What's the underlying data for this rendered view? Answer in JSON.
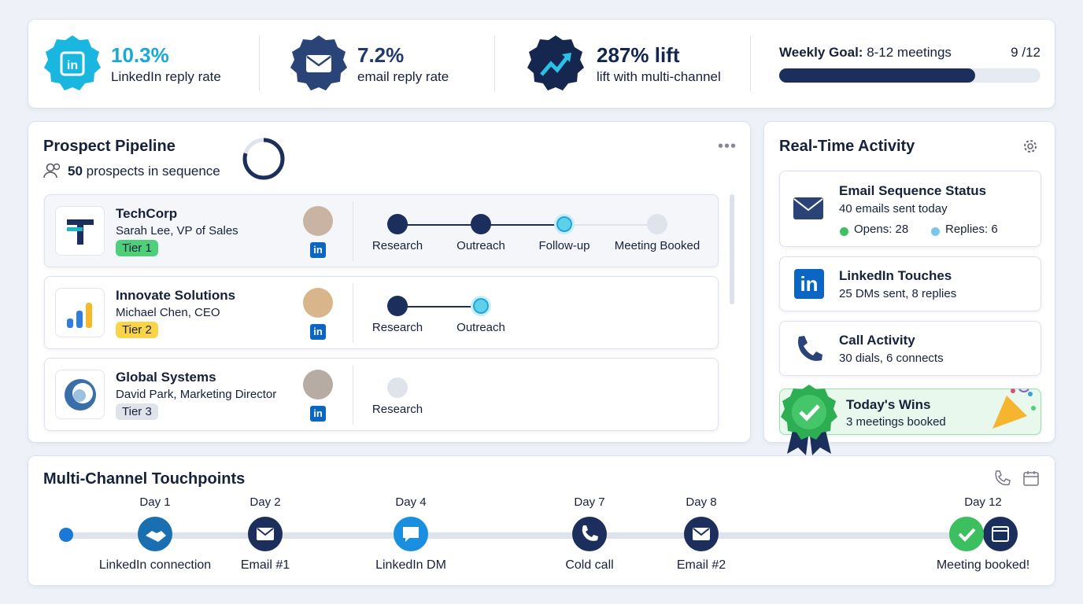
{
  "stats": [
    {
      "value": "10.3%",
      "label": "LinkedIn reply rate"
    },
    {
      "value": "7.2%",
      "label": "email reply rate"
    },
    {
      "value": "287% lift",
      "label": "lift with multi-channel"
    }
  ],
  "goal": {
    "label": "Weekly Goal:",
    "target": "8-12 meetings",
    "done": 9,
    "separator": "/",
    "total": 12
  },
  "pipeline": {
    "title": "Prospect Pipeline",
    "count": 50,
    "count_label": "prospects in sequence",
    "prospects": [
      {
        "company": "TechCorp",
        "contact": "Sarah Lee, VP of Sales",
        "tier": "Tier 1",
        "stages": [
          "Research",
          "Outreach",
          "Follow-up",
          "Meeting Booked"
        ]
      },
      {
        "company": "Innovate Solutions",
        "contact": "Michael Chen, CEO",
        "tier": "Tier 2",
        "stages": [
          "Research",
          "Outreach"
        ]
      },
      {
        "company": "Global Systems",
        "contact": "David Park, Marketing Director",
        "tier": "Tier 3",
        "stages": [
          "Research"
        ]
      }
    ]
  },
  "activity": {
    "title": "Real-Time Activity",
    "email": {
      "title": "Email Sequence Status",
      "detail": "40 emails sent today",
      "opens": "Opens: 28",
      "replies": "Replies: 6"
    },
    "linkedin": {
      "title": "LinkedIn Touches",
      "detail": "25 DMs sent, 8 replies"
    },
    "calls": {
      "title": "Call Activity",
      "detail": "30 dials, 6 connects"
    },
    "wins": {
      "title": "Today's Wins",
      "detail": "3 meetings booked"
    }
  },
  "touchpoints": {
    "title": "Multi-Channel Touchpoints",
    "steps": [
      {
        "day": "Day 1",
        "label": "LinkedIn connection"
      },
      {
        "day": "Day 2",
        "label": "Email #1"
      },
      {
        "day": "Day 4",
        "label": "LinkedIn DM"
      },
      {
        "day": "Day 7",
        "label": "Cold call"
      },
      {
        "day": "Day 8",
        "label": "Email #2"
      },
      {
        "day": "Day 12",
        "label": "Meeting booked!"
      }
    ]
  }
}
